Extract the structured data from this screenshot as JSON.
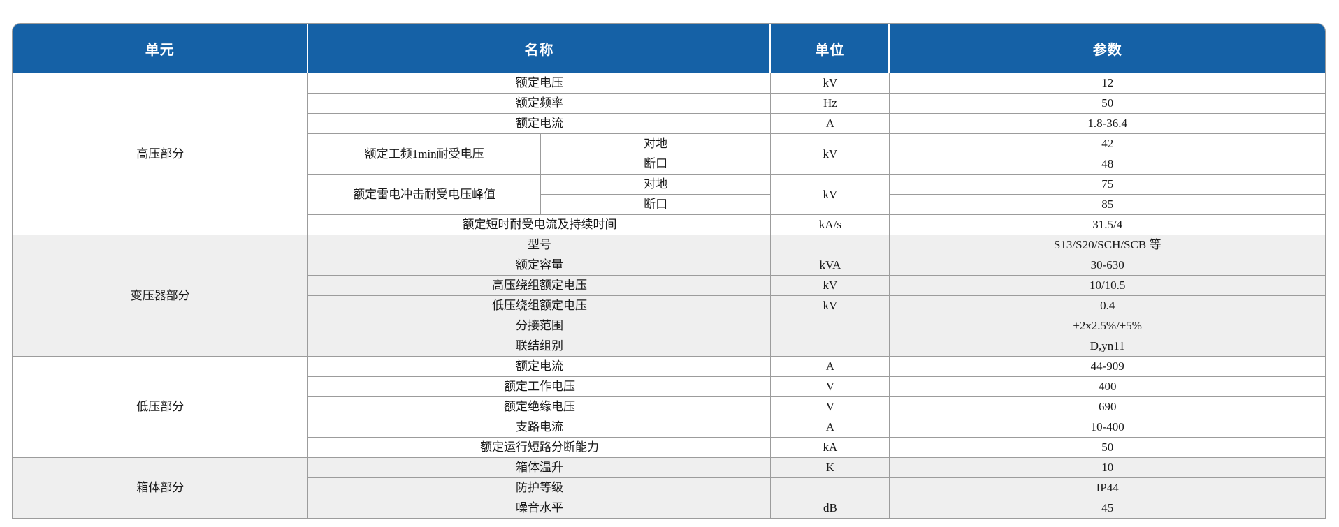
{
  "table": {
    "headers": {
      "unit_group": "单元",
      "name": "名称",
      "unit": "单位",
      "param": "参数"
    },
    "colors": {
      "header_bg": "#1561a6",
      "header_text": "#ffffff",
      "stripe_bg": "#efefef",
      "border": "#9c9c9c"
    },
    "sections": [
      {
        "label": "高压部分",
        "rows": [
          {
            "name": "额定电压",
            "unit": "kV",
            "value": "12"
          },
          {
            "name": "额定频率",
            "unit": "Hz",
            "value": "50"
          },
          {
            "name": "额定电流",
            "unit": "A",
            "value": "1.8-36.4"
          },
          {
            "name": "额定工频1min耐受电压",
            "sub": "对地",
            "unit": "kV",
            "value": "42"
          },
          {
            "sub": "断口",
            "value": "48"
          },
          {
            "name": "额定雷电冲击耐受电压峰值",
            "sub": "对地",
            "unit": "kV",
            "value": "75"
          },
          {
            "sub": "断口",
            "value": "85"
          },
          {
            "name": "额定短时耐受电流及持续时间",
            "unit": "kA/s",
            "value": "31.5/4"
          }
        ]
      },
      {
        "label": "变压器部分",
        "rows": [
          {
            "name": "型号",
            "unit": "",
            "value": "S13/S20/SCH/SCB 等"
          },
          {
            "name": "额定容量",
            "unit": "kVA",
            "value": "30-630"
          },
          {
            "name": "高压绕组额定电压",
            "unit": "kV",
            "value": "10/10.5"
          },
          {
            "name": "低压绕组额定电压",
            "unit": "kV",
            "value": "0.4"
          },
          {
            "name": "分接范围",
            "unit": "",
            "value": "±2x2.5%/±5%"
          },
          {
            "name": "联结组别",
            "unit": "",
            "value": "D,yn11"
          }
        ]
      },
      {
        "label": "低压部分",
        "rows": [
          {
            "name": "额定电流",
            "unit": "A",
            "value": "44-909"
          },
          {
            "name": "额定工作电压",
            "unit": "V",
            "value": "400"
          },
          {
            "name": "额定绝缘电压",
            "unit": "V",
            "value": "690"
          },
          {
            "name": "支路电流",
            "unit": "A",
            "value": "10-400"
          },
          {
            "name": "额定运行短路分断能力",
            "unit": "kA",
            "value": "50"
          }
        ]
      },
      {
        "label": "箱体部分",
        "rows": [
          {
            "name": "箱体温升",
            "unit": "K",
            "value": "10"
          },
          {
            "name": "防护等级",
            "unit": "",
            "value": "IP44"
          },
          {
            "name": "噪音水平",
            "unit": "dB",
            "value": "45"
          }
        ]
      }
    ]
  }
}
